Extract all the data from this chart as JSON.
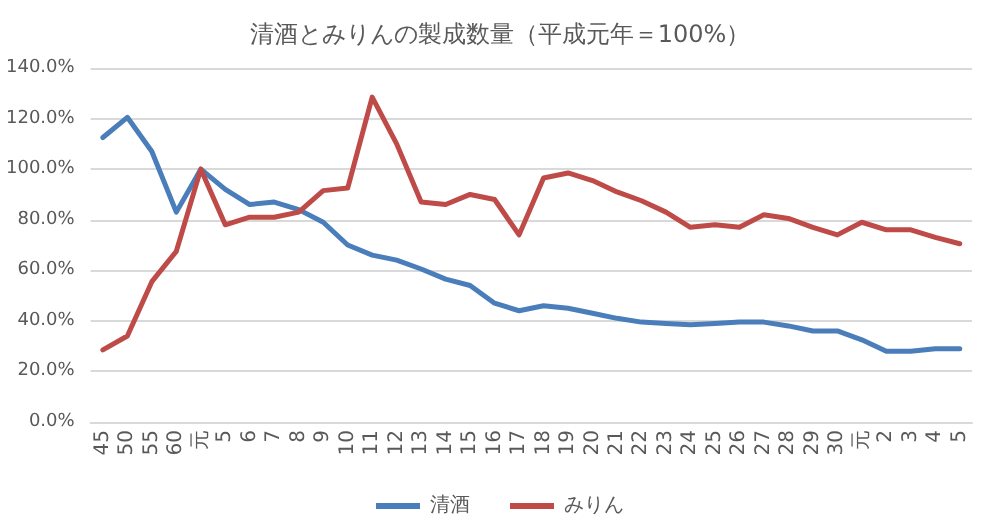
{
  "chart_data": {
    "type": "line",
    "title": "清酒とみりんの製成数量（平成元年＝100%）",
    "categories": [
      "45",
      "50",
      "55",
      "60",
      "元",
      "5",
      "6",
      "7",
      "8",
      "9",
      "10",
      "11",
      "12",
      "13",
      "14",
      "15",
      "16",
      "17",
      "18",
      "19",
      "20",
      "21",
      "22",
      "23",
      "24",
      "25",
      "26",
      "27",
      "28",
      "29",
      "30",
      "元",
      "2",
      "3",
      "4",
      "5"
    ],
    "series": [
      {
        "name": "清酒",
        "color": "#4a7ebb",
        "values": [
          112.5,
          120.5,
          107,
          83,
          100,
          92,
          86,
          87,
          84,
          79,
          70,
          66,
          64,
          60.5,
          56.5,
          54,
          47,
          44,
          46,
          45,
          43,
          41,
          39.5,
          39,
          38.5,
          39,
          39.5,
          39.5,
          38,
          36,
          36,
          32.5,
          28,
          28,
          29,
          29
        ]
      },
      {
        "name": "みりん",
        "color": "#be4b48",
        "values": [
          28.5,
          34,
          55.5,
          67.5,
          100,
          78,
          81,
          81,
          83,
          91.5,
          92.5,
          128.5,
          110,
          87,
          86,
          90,
          88,
          74,
          96.5,
          98.5,
          95.5,
          91,
          87.5,
          83,
          77,
          78,
          77,
          82,
          80.5,
          77,
          74,
          79,
          76,
          76,
          73,
          70.5
        ]
      }
    ],
    "ylim": [
      0,
      140
    ],
    "yticks": [
      {
        "value": 0,
        "label": "0.0%"
      },
      {
        "value": 20,
        "label": "20.0%"
      },
      {
        "value": 40,
        "label": "40.0%"
      },
      {
        "value": 60,
        "label": "60.0%"
      },
      {
        "value": 80,
        "label": "80.0%"
      },
      {
        "value": 100,
        "label": "100.0%"
      },
      {
        "value": 120,
        "label": "120.0%"
      },
      {
        "value": 140,
        "label": "140.0%"
      }
    ],
    "grid": "y",
    "legend": "bottom",
    "marker": "none",
    "line_style": "solid"
  }
}
